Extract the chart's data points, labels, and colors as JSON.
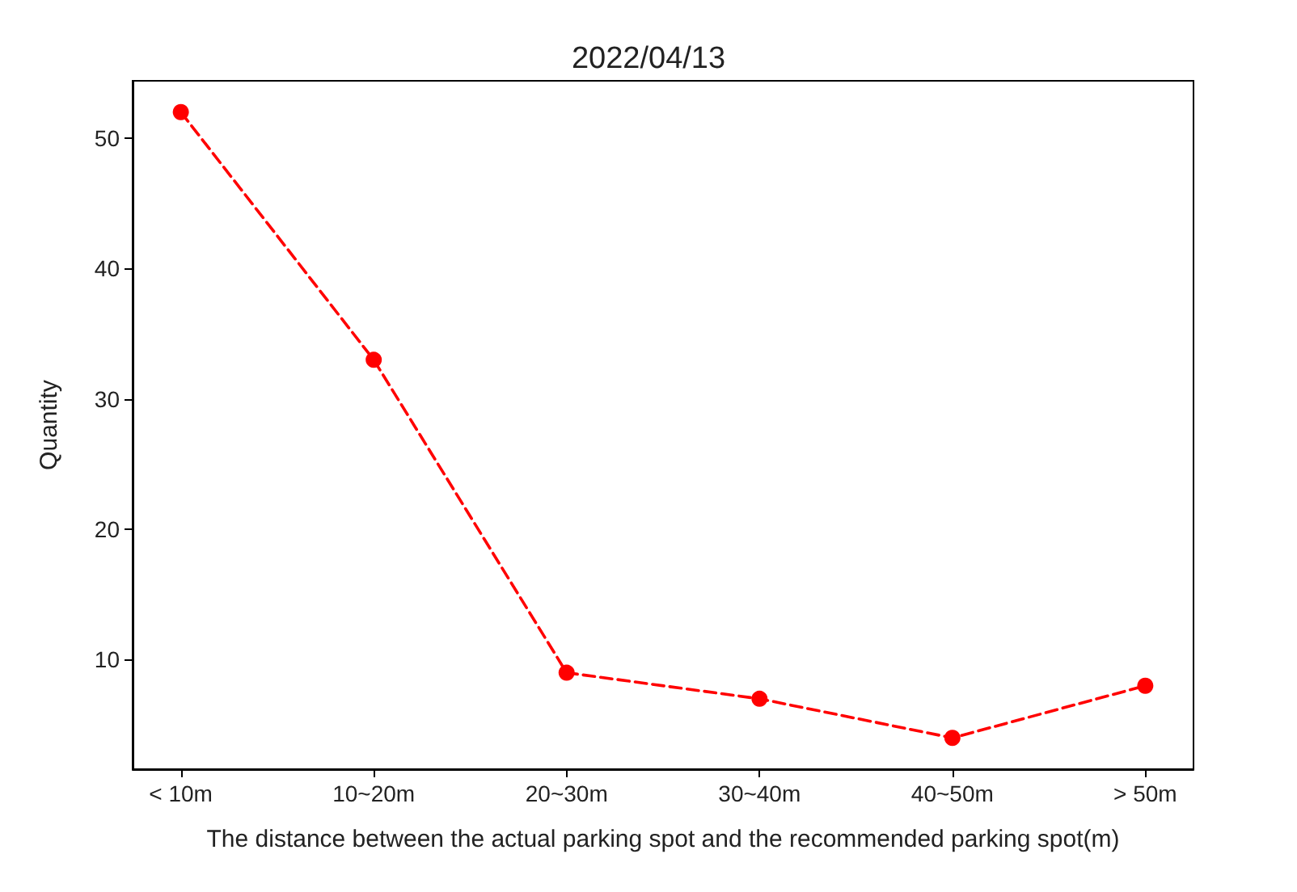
{
  "chart_data": {
    "type": "line",
    "title": "2022/04/13",
    "xlabel": "The distance between the actual parking spot and the recommended parking spot(m)",
    "ylabel": "Quantity",
    "categories": [
      "< 10m",
      "10~20m",
      "20~30m",
      "30~40m",
      "40~50m",
      "> 50m"
    ],
    "series": [
      {
        "color": "#ff0000",
        "values": [
          52,
          33,
          9,
          7,
          4,
          8
        ]
      }
    ],
    "ylim": [
      1.6,
      54.4
    ],
    "yticks": [
      10,
      20,
      30,
      40,
      50
    ],
    "grid": false,
    "marker": "circle",
    "line_style": "dashed"
  }
}
